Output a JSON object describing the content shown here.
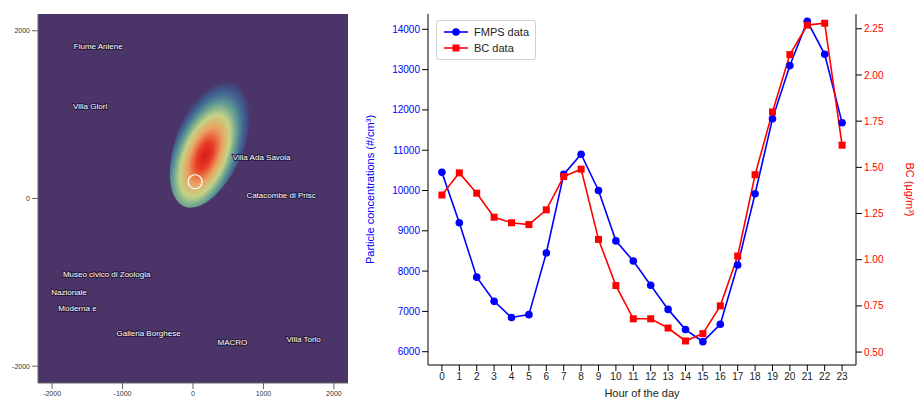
{
  "chart_data": [
    {
      "type": "map",
      "xlim": [
        -2200,
        2200
      ],
      "ylim": [
        -2200,
        2200
      ],
      "xticks": [
        -2000,
        -1000,
        0,
        1000,
        2000
      ],
      "yticks": [
        -2000,
        0,
        2000
      ],
      "hotspot": {
        "x": 260,
        "y": 700
      },
      "points": {
        "x": [
          30
        ],
        "y": [
          200
        ]
      },
      "labels": [
        {
          "text": "Fiume Aniene",
          "x": -1345,
          "y": 1810
        },
        {
          "text": "Villa Glori",
          "x": -1460,
          "y": 1090
        },
        {
          "text": "Villa Ada Savoia",
          "x": 975,
          "y": 480
        },
        {
          "text": "Catacombe di Prisc",
          "x": 1250,
          "y": 30
        },
        {
          "text": "Museo civico di Zoologia",
          "x": -1225,
          "y": -910
        },
        {
          "text": "Nazionale",
          "x": -1760,
          "y": -1130
        },
        {
          "text": "Moderna e",
          "x": -1640,
          "y": -1320
        },
        {
          "text": "Galleria Borghese",
          "x": -630,
          "y": -1610
        },
        {
          "text": "MACRO",
          "x": 560,
          "y": -1720
        },
        {
          "text": "Villa Torlo",
          "x": 1570,
          "y": -1690
        }
      ]
    },
    {
      "type": "line",
      "x_label": "Hour of the day",
      "y_label": "Particle concentrations (#/cm³)",
      "y2_label": "BC (μg/m³)",
      "x": [
        0,
        1,
        2,
        3,
        4,
        5,
        6,
        7,
        8,
        9,
        10,
        11,
        12,
        13,
        14,
        15,
        16,
        17,
        18,
        19,
        20,
        21,
        22,
        23
      ],
      "xlim": [
        -0.8,
        23.8
      ],
      "xticks": [
        0,
        1,
        2,
        3,
        4,
        5,
        6,
        7,
        8,
        9,
        10,
        11,
        12,
        13,
        14,
        15,
        16,
        17,
        18,
        19,
        20,
        21,
        22,
        23
      ],
      "ylim": [
        5670,
        14380
      ],
      "yticks": [
        6000,
        7000,
        8000,
        9000,
        10000,
        11000,
        12000,
        13000,
        14000
      ],
      "y2lim": [
        0.43,
        2.33
      ],
      "y2ticks": [
        {
          "value": 0.5,
          "label": "0.50"
        },
        0.75,
        {
          "value": 1.0,
          "label": "1.00"
        },
        1.25,
        {
          "value": 1.5,
          "label": "1.50"
        },
        1.75,
        {
          "value": 2.0,
          "label": "2.00"
        },
        2.25
      ],
      "legend": "upper left",
      "series": [
        {
          "name": "FMPS data",
          "color": "#0000ff",
          "marker": "circle",
          "axis": "y",
          "values": [
            10450,
            9200,
            7850,
            7250,
            6850,
            6920,
            8450,
            10400,
            10900,
            10000,
            8750,
            8250,
            7650,
            7050,
            6550,
            6250,
            6680,
            8150,
            9920,
            11780,
            13100,
            14200,
            13380,
            11680
          ]
        },
        {
          "name": "BC data",
          "color": "#ff0000",
          "marker": "square",
          "axis": "y2",
          "values": [
            1.35,
            1.47,
            1.36,
            1.23,
            1.2,
            1.19,
            1.27,
            1.45,
            1.49,
            1.11,
            0.86,
            0.68,
            0.68,
            0.63,
            0.56,
            0.6,
            0.75,
            1.02,
            1.46,
            1.8,
            2.11,
            2.27,
            2.28,
            1.62
          ]
        }
      ]
    }
  ]
}
